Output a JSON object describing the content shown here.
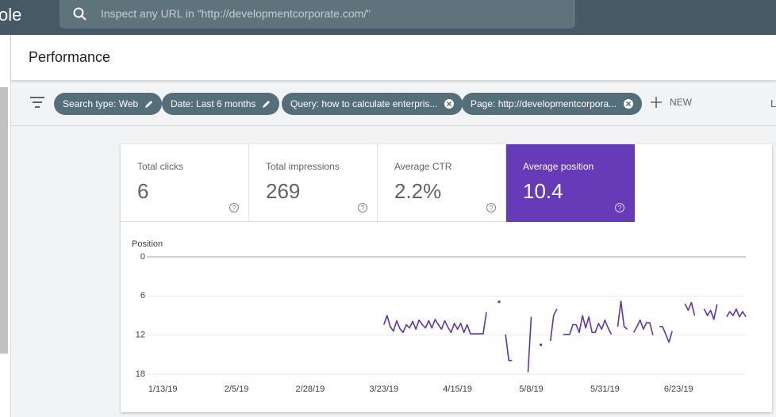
{
  "header": {
    "logo_fragment": "ole",
    "search_placeholder": "Inspect any URL in \"http://developmentcorporate.com/\""
  },
  "page_title": "Performance",
  "filters": [
    "Search type: Web",
    "Date: Last 6 months",
    "Query: how to calculate enterpris...",
    "Page: http://developmentcorpora..."
  ],
  "new_button": "NEW",
  "cut_off_label": "L",
  "metrics": [
    {
      "label": "Total clicks",
      "value": "6"
    },
    {
      "label": "Total impressions",
      "value": "269"
    },
    {
      "label": "Average CTR",
      "value": "2.2%"
    },
    {
      "label": "Average position",
      "value": "10.4"
    }
  ],
  "chart_data": {
    "type": "line",
    "y_label": "Position",
    "y_reversed": true,
    "grid": true,
    "ylim": [
      0,
      18
    ],
    "yticks": [
      0,
      6,
      12,
      18
    ],
    "xlim": [
      "2019-01-08",
      "2019-07-14"
    ],
    "xticks": [
      {
        "value": "2019-01-13",
        "label": "1/13/19"
      },
      {
        "value": "2019-02-05",
        "label": "2/5/19"
      },
      {
        "value": "2019-02-28",
        "label": "2/28/19"
      },
      {
        "value": "2019-03-23",
        "label": "3/23/19"
      },
      {
        "value": "2019-04-15",
        "label": "4/15/19"
      },
      {
        "value": "2019-05-08",
        "label": "5/8/19"
      },
      {
        "value": "2019-05-31",
        "label": "5/31/19"
      },
      {
        "value": "2019-06-23",
        "label": "6/23/19"
      }
    ],
    "x": [
      "2019-03-23",
      "2019-03-24",
      "2019-03-25",
      "2019-03-26",
      "2019-03-27",
      "2019-03-28",
      "2019-03-29",
      "2019-03-30",
      "2019-03-31",
      "2019-04-01",
      "2019-04-02",
      "2019-04-03",
      "2019-04-04",
      "2019-04-05",
      "2019-04-06",
      "2019-04-07",
      "2019-04-08",
      "2019-04-09",
      "2019-04-10",
      "2019-04-11",
      "2019-04-12",
      "2019-04-13",
      "2019-04-14",
      "2019-04-15",
      "2019-04-16",
      "2019-04-17",
      "2019-04-18",
      "2019-04-19",
      "2019-04-20",
      "2019-04-21",
      "2019-04-22",
      "2019-04-23",
      "2019-04-24",
      "2019-04-25",
      "2019-04-26",
      "2019-04-27",
      "2019-04-28",
      "2019-04-29",
      "2019-04-30",
      "2019-05-01",
      "2019-05-02",
      "2019-05-03",
      "2019-05-04",
      "2019-05-05",
      "2019-05-06",
      "2019-05-07",
      "2019-05-08",
      "2019-05-09",
      "2019-05-10",
      "2019-05-11",
      "2019-05-12",
      "2019-05-13",
      "2019-05-14",
      "2019-05-15",
      "2019-05-16",
      "2019-05-17",
      "2019-05-18",
      "2019-05-19",
      "2019-05-20",
      "2019-05-21",
      "2019-05-22",
      "2019-05-23",
      "2019-05-24",
      "2019-05-25",
      "2019-05-26",
      "2019-05-27",
      "2019-05-28",
      "2019-05-29",
      "2019-05-30",
      "2019-05-31",
      "2019-06-01",
      "2019-06-02",
      "2019-06-03",
      "2019-06-04",
      "2019-06-05",
      "2019-06-06",
      "2019-06-07",
      "2019-06-08",
      "2019-06-09",
      "2019-06-10",
      "2019-06-11",
      "2019-06-12",
      "2019-06-13",
      "2019-06-14",
      "2019-06-15",
      "2019-06-16",
      "2019-06-17",
      "2019-06-18",
      "2019-06-19",
      "2019-06-20",
      "2019-06-21",
      "2019-06-22",
      "2019-06-23",
      "2019-06-24",
      "2019-06-25",
      "2019-06-26",
      "2019-06-27",
      "2019-06-28",
      "2019-06-29",
      "2019-06-30",
      "2019-07-01",
      "2019-07-02",
      "2019-07-03",
      "2019-07-04",
      "2019-07-05",
      "2019-07-06",
      "2019-07-07",
      "2019-07-08",
      "2019-07-09",
      "2019-07-10",
      "2019-07-11",
      "2019-07-12",
      "2019-07-13",
      "2019-07-14"
    ],
    "series": [
      {
        "color": "#5e35b1",
        "values": [
          10.4,
          9.0,
          10.7,
          11.4,
          9.8,
          11.0,
          11.6,
          10.4,
          10.9,
          9.9,
          11.1,
          9.7,
          10.4,
          10.9,
          9.8,
          10.9,
          9.6,
          10.4,
          11.1,
          9.8,
          10.8,
          11.6,
          10.2,
          11.1,
          10.2,
          11.6,
          10.4,
          11.8,
          11.8,
          11.8,
          11.8,
          11.8,
          8.5,
          null,
          null,
          null,
          6.9,
          null,
          11.9,
          15.9,
          15.9,
          null,
          null,
          null,
          null,
          17.7,
          9.2,
          null,
          null,
          13.5,
          null,
          null,
          12.9,
          9.0,
          8.0,
          null,
          11.9,
          11.9,
          11.9,
          10.4,
          10.4,
          11.6,
          9.0,
          10.9,
          9.2,
          11.6,
          11.6,
          10.2,
          11.1,
          9.7,
          10.9,
          11.9,
          null,
          10.7,
          6.8,
          10.7,
          11.1,
          null,
          11.6,
          10.7,
          9.7,
          11.1,
          10.1,
          10.1,
          12.0,
          null,
          10.7,
          10.7,
          11.9,
          13.1,
          11.4,
          null,
          null,
          null,
          7.2,
          8.2,
          7.0,
          9.0,
          null,
          null,
          8.0,
          9.0,
          8.2,
          9.6,
          7.3,
          null,
          null,
          9.2,
          8.4,
          9.0,
          8.0,
          9.2,
          8.4,
          9.2
        ]
      }
    ]
  }
}
